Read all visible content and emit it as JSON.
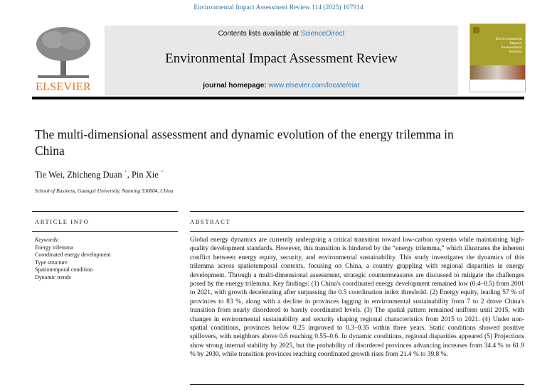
{
  "citation": "Environmental Impact Assessment Review 114 (2025) 107914",
  "header": {
    "publisher_logo_text": "ELSEVIER",
    "contents_prefix": "Contents lists available at ",
    "contents_link": "ScienceDirect",
    "journal_title": "Environmental Impact Assessment Review",
    "homepage_prefix": "journal homepage: ",
    "homepage_link": "www.elsevier.com/locate/eiar",
    "cover_text": "Environmental Impact Assessment Review",
    "colors": {
      "logo": "#e9711c",
      "link": "#2a7fc0",
      "band": "#e8e8e8",
      "cover": "#a8a02c"
    }
  },
  "article": {
    "title": "The multi-dimensional assessment and dynamic evolution of the energy trilemma in China",
    "authors": [
      {
        "name": "Tie Wei",
        "sep": ", "
      },
      {
        "name": "Zhicheng Duan",
        "mark": "*",
        "sep": ", "
      },
      {
        "name": "Pin Xie",
        "mark": "*"
      }
    ],
    "affiliation": "School of Business, Guangxi University, Nanning 530004, China"
  },
  "article_info": {
    "heading": "ARTICLE INFO",
    "keywords_label": "Keywords:",
    "keywords": [
      "Energy trilemma",
      "Coordinated energy development",
      "Type structure",
      "Spatiotemporal condition",
      "Dynamic trends"
    ]
  },
  "abstract": {
    "heading": "ABSTRACT",
    "text": "Global energy dynamics are currently undergoing a critical transition toward low-carbon systems while maintaining high-quality development standards. However, this transition is hindered by the “energy trilemma,” which illustrates the inherent conflict between energy equity, security, and environmental sustainability. This study investigates the dynamics of this trilemma across spatiotemporal contexts, focusing on China, a country grappling with regional disparities in energy development. Through a multi-dimensional assessment, strategic countermeasures are discussed to mitigate the challenges posed by the energy trilemma. Key findings: (1) China's coordinated energy development remained low (0.4–0.5) from 2001 to 2021, with growth decelerating after surpassing the 0.5 coordination index threshold. (2) Energy equity, leading 57 % of provinces to 83 %, along with a decline in provinces lagging in environmental sustainability from 7 to 2 drove China's transition from nearly disordered to barely coordinated levels. (3) The spatial pattern remained uniform until 2015, with changes in environmental sustainability and security shaping regional characteristics from 2015 to 2021. (4) Under non-spatial conditions, provinces below 0.25 improved to 0.3–0.35 within three years. Static conditions showed positive spillovers, with neighbors above 0.6 reaching 0.55–0.6. In dynamic conditions, regional disparities appeared (5) Projections show strong internal stability by 2025, but the probability of disordered provinces advancing increases from 34.4 % to 61.9 % by 2030, while transition provinces reaching coordinated growth rises from 21.4 % to 39.8 %."
  }
}
